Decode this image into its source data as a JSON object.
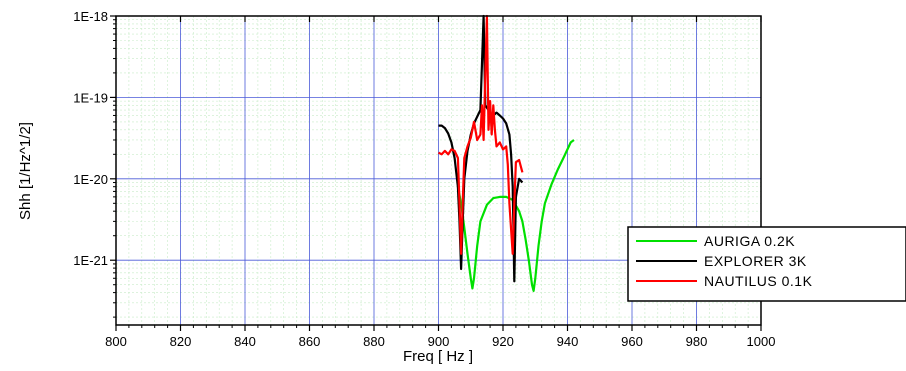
{
  "chart_data": {
    "type": "line",
    "xlabel": "Freq [ Hz ]",
    "ylabel": "Shh [1/Hz^1/2]",
    "xlim": [
      800,
      1000
    ],
    "ylim": [
      1.6e-22,
      1e-18
    ],
    "yscale": "log",
    "x_ticks": [
      "800",
      "820",
      "840",
      "860",
      "880",
      "900",
      "920",
      "940",
      "960",
      "980",
      "1000"
    ],
    "y_ticks": [
      "1E-18",
      "1E-19",
      "1E-20",
      "1E-21"
    ],
    "y_tick_values": [
      1e-18,
      1e-19,
      1e-20,
      1e-21
    ],
    "grid": true,
    "legend_position": "bottom-right",
    "series": [
      {
        "name": "AURIGA 0.2K",
        "color": "#00e000",
        "points": [
          [
            906,
            8e-21
          ],
          [
            907,
            5e-21
          ],
          [
            908,
            2.5e-21
          ],
          [
            909,
            1.2e-21
          ],
          [
            910,
            6e-22
          ],
          [
            910.5,
            4.5e-22
          ],
          [
            911,
            6e-22
          ],
          [
            912,
            1.5e-21
          ],
          [
            913,
            3e-21
          ],
          [
            915,
            4.8e-21
          ],
          [
            917,
            5.8e-21
          ],
          [
            919,
            6e-21
          ],
          [
            921,
            6e-21
          ],
          [
            923,
            5.5e-21
          ],
          [
            925,
            4e-21
          ],
          [
            926,
            3e-21
          ],
          [
            927,
            1.8e-21
          ],
          [
            928,
            1e-21
          ],
          [
            929,
            5e-22
          ],
          [
            929.5,
            4.2e-22
          ],
          [
            930,
            6e-22
          ],
          [
            931,
            1.5e-21
          ],
          [
            932,
            3e-21
          ],
          [
            933,
            5e-21
          ],
          [
            935,
            8.5e-21
          ],
          [
            937,
            1.3e-20
          ],
          [
            939,
            1.9e-20
          ],
          [
            941,
            2.8e-20
          ],
          [
            942,
            3e-20
          ]
        ]
      },
      {
        "name": "EXPLORER 3K",
        "color": "#000000",
        "points": [
          [
            900,
            4.5e-20
          ],
          [
            901,
            4.5e-20
          ],
          [
            902,
            4.2e-20
          ],
          [
            903,
            3.6e-20
          ],
          [
            904,
            2.8e-20
          ],
          [
            905,
            1.8e-20
          ],
          [
            906,
            8e-21
          ],
          [
            906.5,
            3e-21
          ],
          [
            907,
            7.8e-22
          ],
          [
            907.5,
            3e-21
          ],
          [
            908,
            1e-20
          ],
          [
            909,
            2.2e-20
          ],
          [
            910,
            3.5e-20
          ],
          [
            911,
            4.8e-20
          ],
          [
            912,
            5.8e-20
          ],
          [
            913,
            7e-20
          ],
          [
            914,
            1e-18
          ],
          [
            914.5,
            8e-20
          ],
          [
            915,
            7.5e-20
          ],
          [
            916,
            6.5e-20
          ],
          [
            917,
            6e-20
          ],
          [
            918,
            6.5e-20
          ],
          [
            919,
            6e-20
          ],
          [
            920,
            5.5e-20
          ],
          [
            921,
            4.8e-20
          ],
          [
            922,
            3.5e-20
          ],
          [
            922.5,
            2e-20
          ],
          [
            923,
            8e-21
          ],
          [
            923.5,
            5.5e-22
          ],
          [
            924,
            6e-21
          ],
          [
            925,
            1e-20
          ],
          [
            926,
            9e-21
          ]
        ]
      },
      {
        "name": "NAUTILUS 0.1K",
        "color": "#ff0000",
        "points": [
          [
            900,
            2.1e-20
          ],
          [
            901,
            2e-20
          ],
          [
            902,
            2.2e-20
          ],
          [
            903,
            2e-20
          ],
          [
            904,
            2.3e-20
          ],
          [
            905,
            2.2e-20
          ],
          [
            906,
            1.8e-20
          ],
          [
            906.5,
            5e-21
          ],
          [
            907,
            1.2e-21
          ],
          [
            907.5,
            5e-21
          ],
          [
            908,
            1.8e-20
          ],
          [
            909,
            2.5e-20
          ],
          [
            910,
            3.2e-20
          ],
          [
            911,
            5e-20
          ],
          [
            912,
            3e-20
          ],
          [
            913,
            3.5e-20
          ],
          [
            913.5,
            8e-20
          ],
          [
            914,
            3e-20
          ],
          [
            915,
            1e-18
          ],
          [
            915.5,
            4e-20
          ],
          [
            916,
            9e-20
          ],
          [
            916.5,
            3.5e-20
          ],
          [
            917,
            8e-20
          ],
          [
            917.5,
            4e-20
          ],
          [
            918,
            2.5e-20
          ],
          [
            919,
            2.8e-20
          ],
          [
            920,
            2.3e-20
          ],
          [
            921,
            2.5e-20
          ],
          [
            921.5,
            1.5e-20
          ],
          [
            922,
            5e-21
          ],
          [
            923,
            1.2e-21
          ],
          [
            923.5,
            5e-21
          ],
          [
            924,
            1.6e-20
          ],
          [
            925,
            1.7e-20
          ],
          [
            926,
            1.2e-20
          ]
        ]
      }
    ]
  }
}
